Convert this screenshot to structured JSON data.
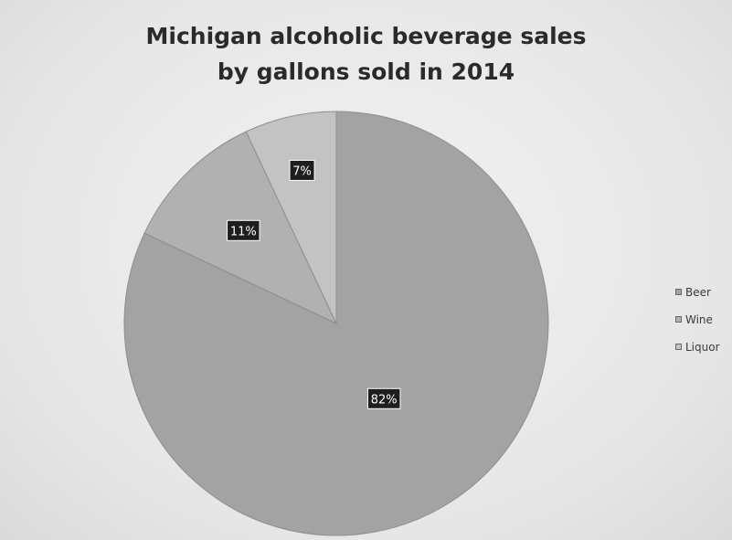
{
  "chart_data": {
    "type": "pie",
    "title_lines": [
      "Michigan alcoholic beverage sales",
      "by gallons sold in 2014"
    ],
    "categories": [
      "Beer",
      "Wine",
      "Liquor"
    ],
    "values": [
      82,
      11,
      7
    ],
    "labels": [
      "82%",
      "11%",
      "7%"
    ],
    "colors": [
      "#a3a3a3",
      "#b1b1b1",
      "#c3c3c3"
    ],
    "legend_position": "right",
    "start_angle": "12 o'clock",
    "direction": "clockwise"
  }
}
